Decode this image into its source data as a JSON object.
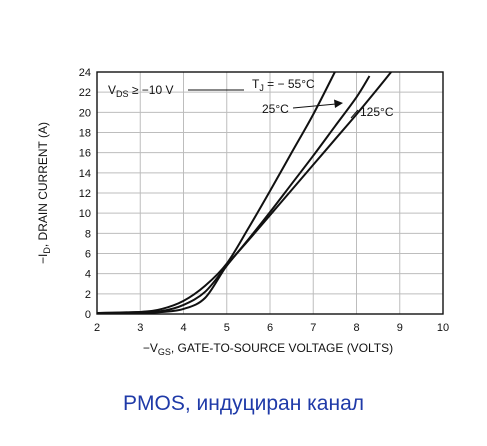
{
  "chart_data": {
    "type": "line",
    "xlabel": {
      "prefix": "−V",
      "sub": "GS",
      "suffix": ", GATE-TO-SOURCE VOLTAGE (VOLTS)"
    },
    "ylabel": {
      "prefix": "−I",
      "sub": "D",
      "suffix": ", DRAIN CURRENT (A)"
    },
    "xlim": [
      2,
      10
    ],
    "ylim": [
      0,
      24
    ],
    "xticks": [
      2,
      3,
      4,
      5,
      6,
      7,
      8,
      9,
      10
    ],
    "yticks": [
      0,
      2,
      4,
      6,
      8,
      10,
      12,
      14,
      16,
      18,
      20,
      22,
      24
    ],
    "grid": true,
    "condition": {
      "prefix": "V",
      "sub": "DS",
      "suffix": " ≥ −10 V"
    },
    "series": [
      {
        "name": "T_J = −55°C",
        "x": [
          2.0,
          3.0,
          3.5,
          4.0,
          4.5,
          5.0,
          5.5,
          6.0,
          6.5,
          7.0,
          7.5
        ],
        "y": [
          0.1,
          0.2,
          0.5,
          1.3,
          2.8,
          5.0,
          8.5,
          12.2,
          16.0,
          19.8,
          24.0
        ]
      },
      {
        "name": "25°C",
        "x": [
          2.0,
          3.0,
          3.5,
          4.0,
          4.5,
          5.0,
          5.5,
          6.0,
          6.5,
          7.0,
          7.5,
          8.0,
          8.3
        ],
        "y": [
          0.1,
          0.2,
          0.3,
          0.9,
          2.2,
          4.8,
          7.4,
          10.1,
          12.9,
          15.7,
          18.6,
          21.5,
          23.6
        ]
      },
      {
        "name": "125°C",
        "x": [
          2.0,
          3.0,
          3.5,
          4.0,
          4.5,
          5.0,
          5.5,
          6.0,
          6.5,
          7.0,
          7.5,
          8.0,
          8.5,
          8.8
        ],
        "y": [
          0.1,
          0.1,
          0.2,
          0.5,
          1.6,
          4.8,
          7.3,
          9.8,
          12.3,
          14.8,
          17.3,
          19.8,
          22.4,
          24.0
        ]
      }
    ],
    "labels": {
      "tj": {
        "prefix": "T",
        "sub": "J",
        "suffix": " = − 55°C"
      },
      "t25": "25°C",
      "t125": "125°C"
    }
  },
  "caption": "PMOS, индуциран канал"
}
